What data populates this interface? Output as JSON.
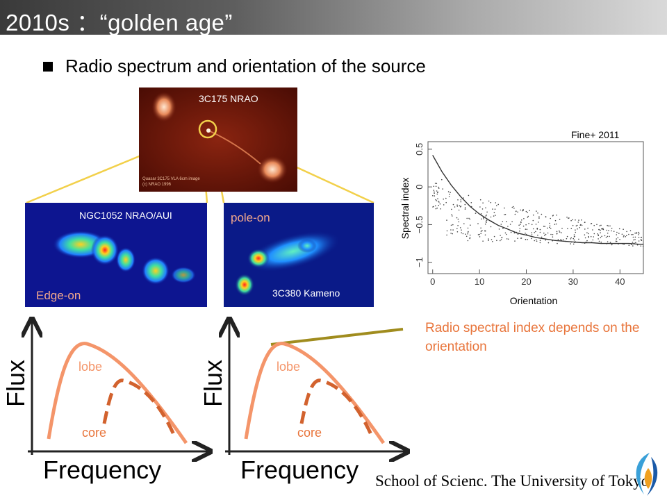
{
  "slide": {
    "title": "2010s ：“golden age”",
    "bullet": "Radio spectrum and orientation of the source",
    "note": "Radio spectral index depends on the orientation",
    "footer": "School of Scienc. The University of Tokyo"
  },
  "images": {
    "top": {
      "caption": "3C175 NRAO",
      "inset": "Quasar 3C175 VLA 6cm image (c) NRAO 1996"
    },
    "left": {
      "caption": "NGC1052 NRAO/AUI",
      "tag": "Edge-on"
    },
    "right": {
      "caption": "3C380 Kameno",
      "tag": "pole-on"
    }
  },
  "sketches": {
    "flux_label": "Flux",
    "freq_label": "Frequency",
    "lobe_label": "lobe",
    "core_label": "core"
  },
  "plot": {
    "credit": "Fine+ 2011",
    "ylabel": "Spectral index",
    "xlabel": "Orientation",
    "xticks": [
      "0",
      "10",
      "20",
      "30",
      "40"
    ],
    "yticks": [
      "0.5",
      "0",
      "−0.5",
      "−1"
    ]
  },
  "chart_data": {
    "type": "scatter",
    "title": "",
    "xlabel": "Orientation",
    "ylabel": "Spectral index",
    "xlim": [
      -1,
      45
    ],
    "ylim": [
      -1.15,
      0.6
    ],
    "xticks": [
      0,
      10,
      20,
      30,
      40
    ],
    "yticks": [
      0.5,
      0,
      -0.5,
      -1
    ],
    "grid": false,
    "curve": {
      "x": [
        0,
        2,
        4,
        6,
        8,
        10,
        12,
        14,
        16,
        18,
        20,
        22,
        24,
        26,
        28,
        30,
        32,
        34,
        36,
        38,
        40,
        42,
        44,
        45
      ],
      "y": [
        0.42,
        0.2,
        0.02,
        -0.13,
        -0.26,
        -0.36,
        -0.44,
        -0.51,
        -0.56,
        -0.61,
        -0.64,
        -0.67,
        -0.69,
        -0.71,
        -0.72,
        -0.73,
        -0.74,
        -0.74,
        -0.75,
        -0.75,
        -0.75,
        -0.75,
        -0.76,
        -0.76
      ]
    },
    "scatter_note": "dense cloud of points roughly between -0.2 and -0.8, converging toward -0.75 at large orientation"
  },
  "colors": {
    "title_text": "#ffffff",
    "note": "#e8743a",
    "lobe_curve": "#f4956a",
    "core_curve": "#d2622e",
    "tangent_line": "#a08c1e",
    "connector": "#f2d04a",
    "label_pink": "#f3a88c"
  }
}
